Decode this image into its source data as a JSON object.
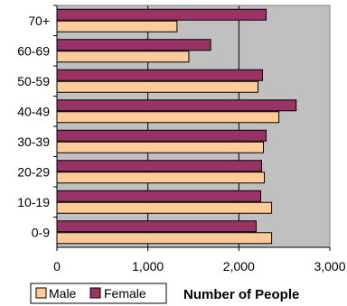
{
  "chart_data": {
    "type": "bar",
    "orientation": "horizontal",
    "categories": [
      "0-9",
      "10-19",
      "20-29",
      "30-39",
      "40-49",
      "50-59",
      "60-69",
      "70+"
    ],
    "series": [
      {
        "name": "Male",
        "color": "#FFCC99",
        "values": [
          2360,
          2360,
          2280,
          2270,
          2440,
          2210,
          1450,
          1320
        ]
      },
      {
        "name": "Female",
        "color": "#993366",
        "values": [
          2190,
          2240,
          2250,
          2300,
          2630,
          2260,
          1690,
          2300
        ]
      }
    ],
    "xlim": [
      0,
      3000
    ],
    "x_ticks": [
      "0",
      "1,000",
      "2,000",
      "3,000"
    ],
    "xlabel": "Number of People",
    "ylabel": "",
    "title": "",
    "grid": "vertical",
    "plot_background": "#C0C0C0",
    "legend_position": "bottom-left",
    "legend": {
      "male": "Male",
      "female": "Female"
    }
  }
}
